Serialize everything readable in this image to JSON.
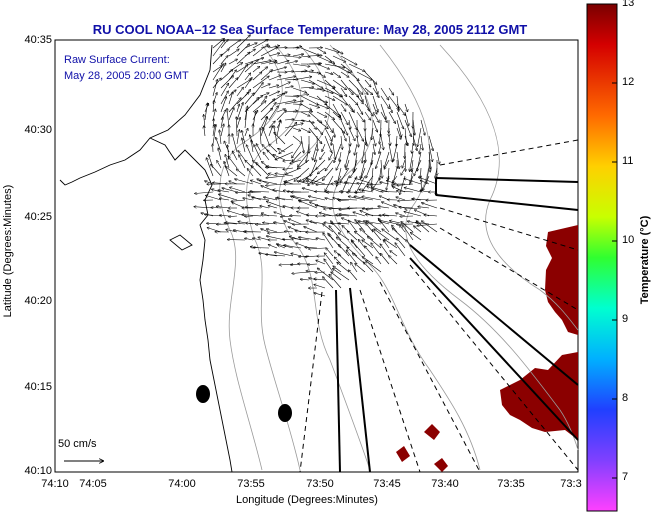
{
  "title": "RU COOL  NOAA–12  Sea Surface Temperature:  May 28, 2005 2112 GMT",
  "annotation": {
    "line1": "Raw Surface Current:",
    "line2": "May 28, 2005 20:00 GMT"
  },
  "scale_label": "50 cm/s",
  "map_data": {
    "type": "map",
    "xlabel": "Longitude (Degrees:Minutes)",
    "ylabel": "Latitude (Degrees:Minutes)",
    "x_ticks": [
      "74:10",
      "74:05",
      "74:00",
      "73:55",
      "73:50",
      "73:45",
      "73:40",
      "73:35",
      "73:3"
    ],
    "y_ticks": [
      "40:35",
      "40:30",
      "40:25",
      "40:20",
      "40:15",
      "40:10"
    ],
    "colorbar": {
      "label": "Temperature (°C)",
      "ticks": [
        "13",
        "12",
        "11",
        "10",
        "9",
        "8",
        "7"
      ],
      "range": [
        7,
        13
      ]
    },
    "colors": {
      "land": "#ffffff",
      "sst_warm": "#8b0000",
      "title": "#1010a8"
    }
  }
}
